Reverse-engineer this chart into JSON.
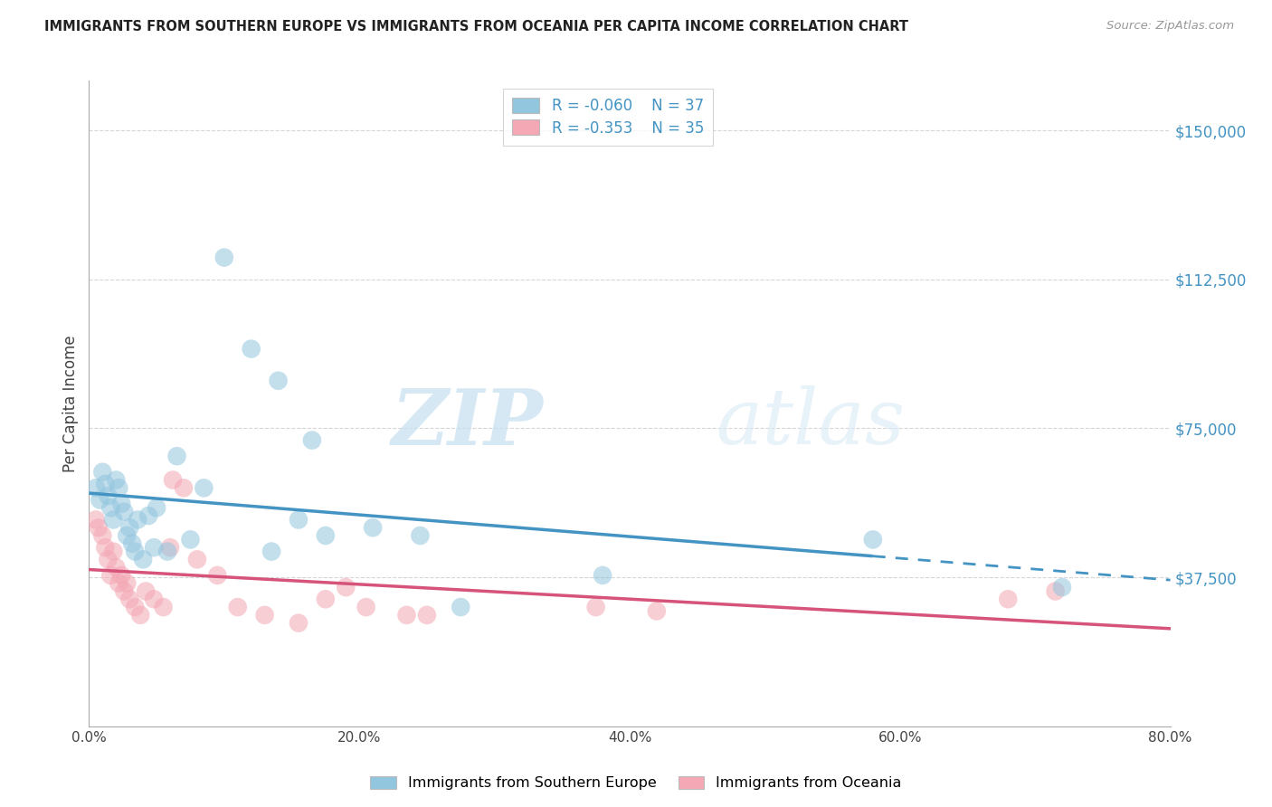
{
  "title": "IMMIGRANTS FROM SOUTHERN EUROPE VS IMMIGRANTS FROM OCEANIA PER CAPITA INCOME CORRELATION CHART",
  "source": "Source: ZipAtlas.com",
  "ylabel": "Per Capita Income",
  "xlim": [
    0.0,
    0.8
  ],
  "ylim": [
    0,
    162500
  ],
  "yticks": [
    37500,
    75000,
    112500,
    150000
  ],
  "xticks": [
    0.0,
    0.2,
    0.4,
    0.6,
    0.8
  ],
  "legend1_R": "-0.060",
  "legend1_N": "37",
  "legend2_R": "-0.353",
  "legend2_N": "35",
  "legend_label1": "Immigrants from Southern Europe",
  "legend_label2": "Immigrants from Oceania",
  "color_blue": "#92c5de",
  "color_pink": "#f4a7b4",
  "line_blue": "#4393c3",
  "line_pink": "#d6537a",
  "watermark_zip": "ZIP",
  "watermark_atlas": "atlas",
  "blue_x": [
    0.005,
    0.008,
    0.01,
    0.012,
    0.014,
    0.016,
    0.018,
    0.02,
    0.022,
    0.024,
    0.026,
    0.028,
    0.03,
    0.032,
    0.034,
    0.036,
    0.04,
    0.044,
    0.05,
    0.058,
    0.065,
    0.075,
    0.085,
    0.1,
    0.12,
    0.14,
    0.165,
    0.21,
    0.245,
    0.275,
    0.175,
    0.135,
    0.155,
    0.38,
    0.58,
    0.72,
    0.048
  ],
  "blue_y": [
    60000,
    57000,
    64000,
    61000,
    58000,
    55000,
    52000,
    62000,
    60000,
    56000,
    54000,
    48000,
    50000,
    46000,
    44000,
    52000,
    42000,
    53000,
    55000,
    44000,
    68000,
    47000,
    60000,
    118000,
    95000,
    87000,
    72000,
    50000,
    48000,
    30000,
    48000,
    44000,
    52000,
    38000,
    47000,
    35000,
    45000
  ],
  "pink_x": [
    0.005,
    0.007,
    0.01,
    0.012,
    0.014,
    0.016,
    0.018,
    0.02,
    0.022,
    0.024,
    0.026,
    0.028,
    0.03,
    0.034,
    0.038,
    0.042,
    0.048,
    0.055,
    0.062,
    0.07,
    0.08,
    0.095,
    0.11,
    0.13,
    0.155,
    0.175,
    0.205,
    0.25,
    0.375,
    0.42,
    0.68,
    0.715,
    0.06,
    0.19,
    0.235
  ],
  "pink_y": [
    52000,
    50000,
    48000,
    45000,
    42000,
    38000,
    44000,
    40000,
    36000,
    38000,
    34000,
    36000,
    32000,
    30000,
    28000,
    34000,
    32000,
    30000,
    62000,
    60000,
    42000,
    38000,
    30000,
    28000,
    26000,
    32000,
    30000,
    28000,
    30000,
    29000,
    32000,
    34000,
    45000,
    35000,
    28000
  ]
}
